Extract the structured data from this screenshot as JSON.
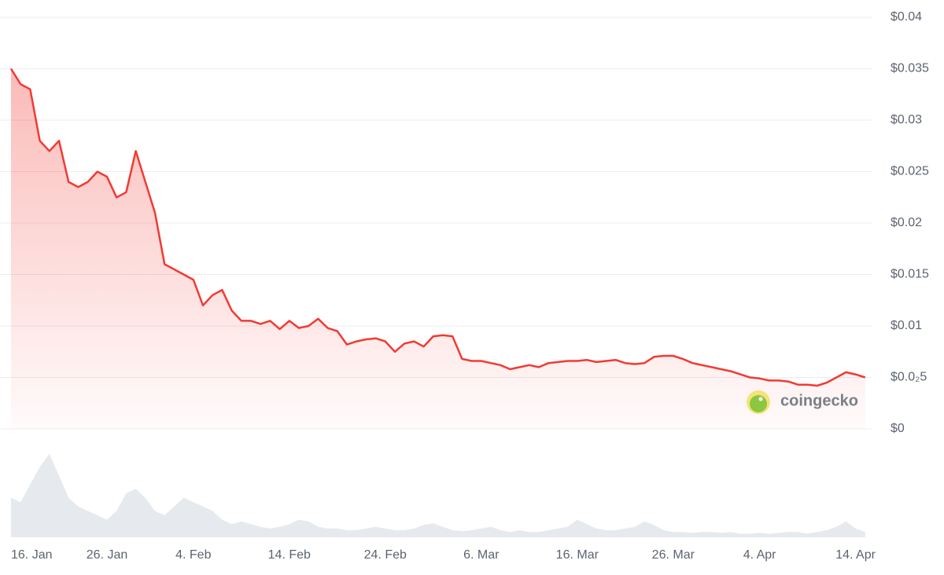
{
  "chart_data": {
    "type": "line",
    "categories": [
      "16. Jan",
      null,
      null,
      null,
      null,
      null,
      null,
      null,
      null,
      null,
      "26. Jan",
      null,
      null,
      null,
      null,
      null,
      null,
      null,
      null,
      "4. Feb",
      null,
      null,
      null,
      null,
      null,
      null,
      null,
      null,
      null,
      "14. Feb",
      null,
      null,
      null,
      null,
      null,
      null,
      null,
      null,
      null,
      "24. Feb",
      null,
      null,
      null,
      null,
      null,
      null,
      null,
      null,
      null,
      "6. Mar",
      null,
      null,
      null,
      null,
      null,
      null,
      null,
      null,
      null,
      "16. Mar",
      null,
      null,
      null,
      null,
      null,
      null,
      null,
      null,
      null,
      "26. Mar",
      null,
      null,
      null,
      null,
      null,
      null,
      null,
      null,
      "4. Apr",
      null,
      null,
      null,
      null,
      null,
      null,
      null,
      null,
      null,
      "14. Apr",
      null
    ],
    "series": [
      {
        "color": "#f23a33",
        "values": [
          0.035,
          0.0335,
          0.033,
          0.028,
          0.027,
          0.028,
          0.024,
          0.0235,
          0.024,
          0.025,
          0.0245,
          0.0225,
          0.023,
          0.027,
          0.024,
          0.021,
          0.016,
          0.0155,
          0.015,
          0.0145,
          0.012,
          0.013,
          0.0135,
          0.0115,
          0.0105,
          0.0105,
          0.0102,
          0.0105,
          0.0097,
          0.0105,
          0.0098,
          0.01,
          0.0107,
          0.0098,
          0.0095,
          0.0082,
          0.0085,
          0.0087,
          0.0088,
          0.0085,
          0.0075,
          0.0083,
          0.0085,
          0.008,
          0.009,
          0.0091,
          0.009,
          0.0068,
          0.0066,
          0.0066,
          0.0064,
          0.0062,
          0.0058,
          0.006,
          0.0062,
          0.006,
          0.0064,
          0.0065,
          0.0066,
          0.0066,
          0.0067,
          0.0065,
          0.0066,
          0.0067,
          0.0064,
          0.0063,
          0.0064,
          0.007,
          0.0071,
          0.0071,
          0.0068,
          0.0064,
          0.0062,
          0.006,
          0.0058,
          0.0056,
          0.0053,
          0.005,
          0.0049,
          0.0047,
          0.0047,
          0.0046,
          0.0043,
          0.0043,
          0.0042,
          0.0045,
          0.005,
          0.0055,
          0.0053,
          0.005
        ]
      }
    ],
    "volume": {
      "color": "#e6e9ee",
      "values": [
        45,
        40,
        60,
        80,
        95,
        70,
        45,
        35,
        30,
        25,
        20,
        30,
        50,
        55,
        45,
        30,
        25,
        35,
        45,
        40,
        35,
        30,
        20,
        15,
        18,
        15,
        12,
        10,
        12,
        15,
        20,
        18,
        12,
        10,
        10,
        8,
        8,
        10,
        12,
        10,
        8,
        8,
        10,
        14,
        16,
        12,
        8,
        7,
        8,
        10,
        12,
        8,
        6,
        8,
        6,
        6,
        8,
        10,
        12,
        20,
        15,
        10,
        8,
        8,
        10,
        12,
        18,
        14,
        8,
        6,
        6,
        5,
        6,
        6,
        5,
        6,
        4,
        4,
        5,
        4,
        5,
        6,
        6,
        4,
        6,
        8,
        12,
        18,
        10,
        6
      ]
    },
    "ylim": [
      0,
      0.04
    ],
    "yticks": [
      {
        "value": 0,
        "label": "$0"
      },
      {
        "value": 0.005,
        "label": "$0.0₂5"
      },
      {
        "value": 0.01,
        "label": "$0.01"
      },
      {
        "value": 0.015,
        "label": "$0.015"
      },
      {
        "value": 0.02,
        "label": "$0.02"
      },
      {
        "value": 0.025,
        "label": "$0.025"
      },
      {
        "value": 0.03,
        "label": "$0.03"
      },
      {
        "value": 0.035,
        "label": "$0.035"
      },
      {
        "value": 0.04,
        "label": "$0.04"
      }
    ],
    "grid": true,
    "watermark": "coingecko"
  }
}
